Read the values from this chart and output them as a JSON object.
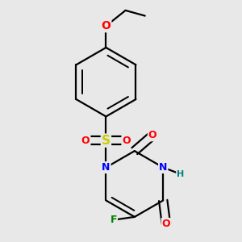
{
  "background_color": "#e8e8e8",
  "bond_color": "#000000",
  "bond_width": 1.6,
  "atom_colors": {
    "O": "#ff0000",
    "N": "#0000ff",
    "F": "#008000",
    "S": "#cccc00",
    "C": "#000000",
    "H": "#008080"
  },
  "font_size": 9,
  "figsize": [
    3.0,
    3.0
  ],
  "dpi": 100
}
